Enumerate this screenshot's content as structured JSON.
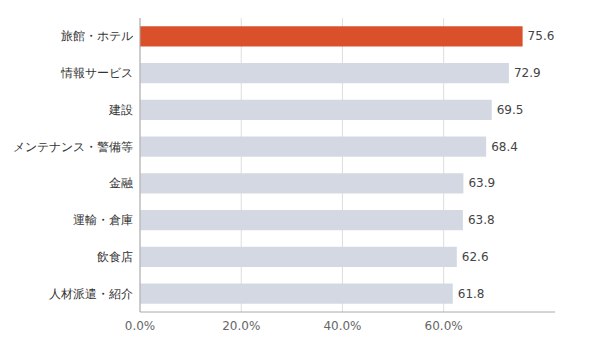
{
  "chart_data": {
    "type": "bar",
    "orientation": "horizontal",
    "categories": [
      "人材派遣・紹介",
      "飲食店",
      "運輸・倉庫",
      "金融",
      "メンテナンス・警備等",
      "建設",
      "情報サービス",
      "旅館・ホテル"
    ],
    "values": [
      61.8,
      62.6,
      63.8,
      63.9,
      68.4,
      69.5,
      72.9,
      75.6
    ],
    "colors": [
      "#d4d8e2",
      "#d4d8e2",
      "#d4d8e2",
      "#d4d8e2",
      "#d4d8e2",
      "#d4d8e2",
      "#d4d8e2",
      "#d9502a"
    ],
    "data_labels": true,
    "xlim": [
      0,
      82
    ],
    "xticks": [
      {
        "value": 0,
        "label": "0.0%"
      },
      {
        "value": 20,
        "label": "20.0%"
      },
      {
        "value": 40,
        "label": "40.0%"
      },
      {
        "value": 60,
        "label": "60.0%"
      }
    ],
    "grid": true
  }
}
